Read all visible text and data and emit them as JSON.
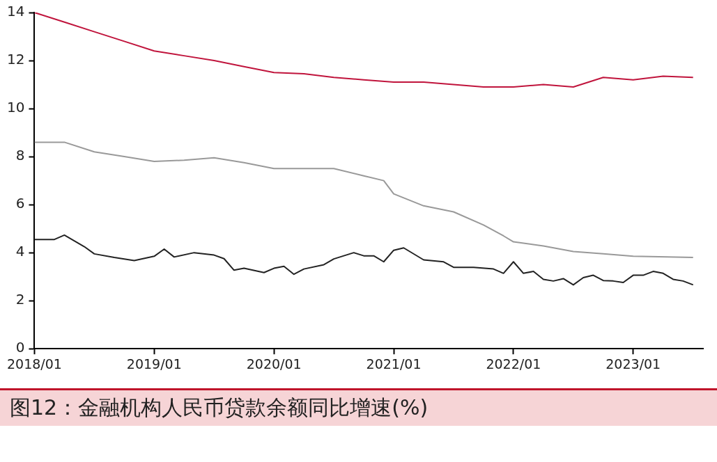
{
  "chart_data": {
    "type": "line",
    "title": "图12：金融机构人民币贷款余额同比增速(%)",
    "xlim": [
      "2018-01",
      "2023-08"
    ],
    "xticks": [
      {
        "value": "2018-01",
        "label": "2018/01"
      },
      {
        "value": "2019-01",
        "label": "2019/01"
      },
      {
        "value": "2020-01",
        "label": "2020/01"
      },
      {
        "value": "2021-01",
        "label": "2021/01"
      },
      {
        "value": "2022-01",
        "label": "2022/01"
      },
      {
        "value": "2023-01",
        "label": "2023/01"
      }
    ],
    "ylim": [
      0,
      14
    ],
    "yticks": [
      0,
      2,
      4,
      6,
      8,
      10,
      12,
      14
    ],
    "legend": false,
    "marker": "none",
    "line_style": "solid",
    "series": [
      {
        "color": "#c0143c",
        "x": [
          "2018-01",
          "2018-04",
          "2018-07",
          "2018-10",
          "2019-01",
          "2019-04",
          "2019-07",
          "2019-10",
          "2020-01",
          "2020-04",
          "2020-07",
          "2020-10",
          "2021-01",
          "2021-04",
          "2021-07",
          "2021-10",
          "2022-01",
          "2022-04",
          "2022-07",
          "2022-10",
          "2023-01",
          "2023-04",
          "2023-07"
        ],
        "values": [
          14.0,
          13.6,
          13.2,
          12.8,
          12.4,
          12.2,
          12.0,
          11.75,
          11.5,
          11.45,
          11.3,
          11.2,
          11.1,
          11.1,
          11.0,
          10.9,
          10.9,
          11.0,
          10.9,
          11.3,
          11.2,
          11.35,
          11.3
        ]
      },
      {
        "color": "#999999",
        "x": [
          "2018-01",
          "2018-04",
          "2018-07",
          "2018-10",
          "2019-01",
          "2019-04",
          "2019-07",
          "2019-10",
          "2020-01",
          "2020-04",
          "2020-07",
          "2020-10",
          "2020-12",
          "2021-01",
          "2021-04",
          "2021-07",
          "2021-10",
          "2021-12",
          "2022-01",
          "2022-04",
          "2022-07",
          "2022-10",
          "2023-01",
          "2023-07"
        ],
        "values": [
          8.6,
          8.6,
          8.2,
          8.0,
          7.8,
          7.85,
          7.95,
          7.75,
          7.5,
          7.5,
          7.5,
          7.2,
          7.0,
          6.45,
          5.95,
          5.7,
          5.15,
          4.7,
          4.45,
          4.28,
          4.05,
          3.95,
          3.85,
          3.8
        ]
      },
      {
        "color": "#222222",
        "x": [
          "2018-01",
          "2018-03",
          "2018-04",
          "2018-06",
          "2018-07",
          "2018-09",
          "2018-11",
          "2019-01",
          "2019-02",
          "2019-03",
          "2019-05",
          "2019-07",
          "2019-08",
          "2019-09",
          "2019-10",
          "2019-12",
          "2020-01",
          "2020-02",
          "2020-03",
          "2020-04",
          "2020-06",
          "2020-07",
          "2020-09",
          "2020-10",
          "2020-11",
          "2020-12",
          "2021-01",
          "2021-02",
          "2021-04",
          "2021-06",
          "2021-07",
          "2021-09",
          "2021-11",
          "2021-12",
          "2022-01",
          "2022-02",
          "2022-03",
          "2022-04",
          "2022-05",
          "2022-06",
          "2022-07",
          "2022-08",
          "2022-09",
          "2022-10",
          "2022-11",
          "2022-12",
          "2023-01",
          "2023-02",
          "2023-03",
          "2023-04",
          "2023-05",
          "2023-06",
          "2023-07"
        ],
        "values": [
          4.55,
          4.55,
          4.73,
          4.25,
          3.95,
          3.8,
          3.67,
          3.85,
          4.15,
          3.82,
          4.0,
          3.9,
          3.75,
          3.27,
          3.35,
          3.17,
          3.35,
          3.43,
          3.1,
          3.32,
          3.5,
          3.74,
          4.0,
          3.87,
          3.87,
          3.62,
          4.1,
          4.2,
          3.7,
          3.62,
          3.39,
          3.39,
          3.32,
          3.14,
          3.62,
          3.14,
          3.22,
          2.89,
          2.82,
          2.92,
          2.66,
          2.96,
          3.06,
          2.84,
          2.82,
          2.76,
          3.06,
          3.06,
          3.22,
          3.14,
          2.89,
          2.82,
          2.66
        ]
      }
    ]
  }
}
